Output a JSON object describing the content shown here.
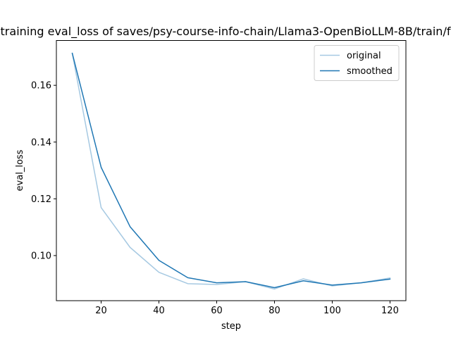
{
  "chart_data": {
    "type": "line",
    "title": "training eval_loss of saves/psy-course-info-chain/Llama3-OpenBioLLM-8B/train/f",
    "xlabel": "step",
    "ylabel": "eval_loss",
    "x": [
      10,
      20,
      30,
      40,
      50,
      60,
      70,
      80,
      90,
      100,
      110,
      120
    ],
    "series": [
      {
        "name": "original",
        "color": "#a6c9e2",
        "values": [
          0.1713,
          0.1169,
          0.1029,
          0.0941,
          0.0901,
          0.0898,
          0.0908,
          0.0882,
          0.0918,
          0.0893,
          0.0904,
          0.0921
        ]
      },
      {
        "name": "smoothed",
        "color": "#1f77b4",
        "values": [
          0.1713,
          0.1311,
          0.1102,
          0.0983,
          0.0922,
          0.0904,
          0.0908,
          0.0887,
          0.0911,
          0.0896,
          0.0904,
          0.0917
        ]
      }
    ],
    "xlim": [
      4.5,
      125.5
    ],
    "ylim": [
      0.0841,
      0.1758
    ],
    "xticks": [
      20,
      40,
      60,
      80,
      100,
      120
    ],
    "yticks": [
      0.1,
      0.12,
      0.14,
      0.16
    ],
    "ytick_labels": [
      "0.10",
      "0.12",
      "0.14",
      "0.16"
    ],
    "grid": false,
    "legend_position": "top-right"
  }
}
